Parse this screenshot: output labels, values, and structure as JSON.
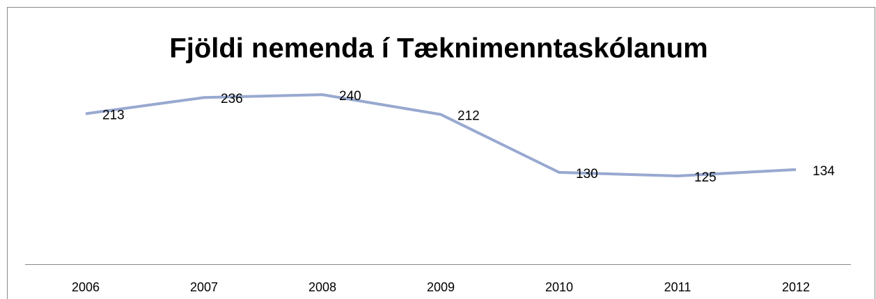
{
  "chart_data": {
    "type": "line",
    "title": "Fjöldi nemenda í Tæknimenntaskólanum",
    "categories": [
      "2006",
      "2007",
      "2008",
      "2009",
      "2010",
      "2011",
      "2012"
    ],
    "values": [
      213,
      236,
      240,
      212,
      130,
      125,
      134
    ],
    "color": "#98a9d0",
    "ylim": [
      0,
      250
    ]
  }
}
